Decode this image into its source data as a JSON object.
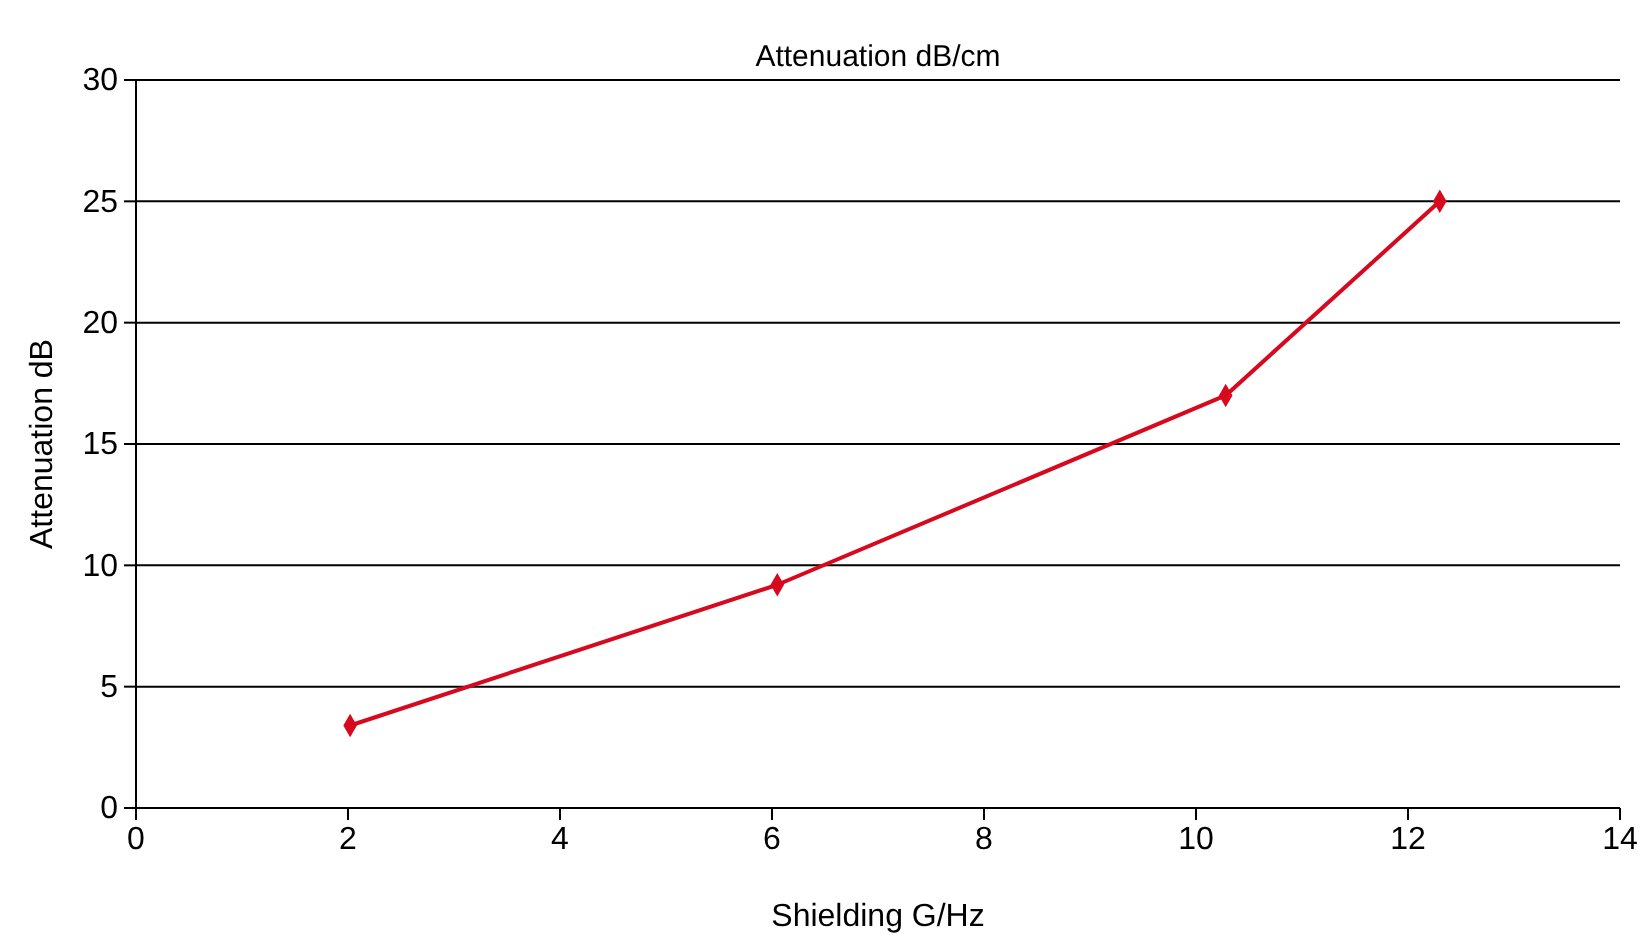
{
  "chart_data": {
    "type": "line",
    "title": "Attenuation dB/cm",
    "xlabel": "Shielding G/Hz",
    "ylabel": "Attenuation dB",
    "x": [
      2.02,
      6.05,
      10.28,
      12.3
    ],
    "series": [
      {
        "color": "#d7091f",
        "values": [
          3.4,
          9.2,
          17,
          25
        ]
      }
    ],
    "xlim": [
      0,
      14
    ],
    "xticks": [
      0,
      2,
      4,
      6,
      8,
      10,
      12,
      14
    ],
    "ylim": [
      0,
      30
    ],
    "yticks": [
      0,
      5,
      10,
      15,
      20,
      25,
      30
    ],
    "grid": "y",
    "marker": "diamond",
    "line_style": "solid"
  }
}
